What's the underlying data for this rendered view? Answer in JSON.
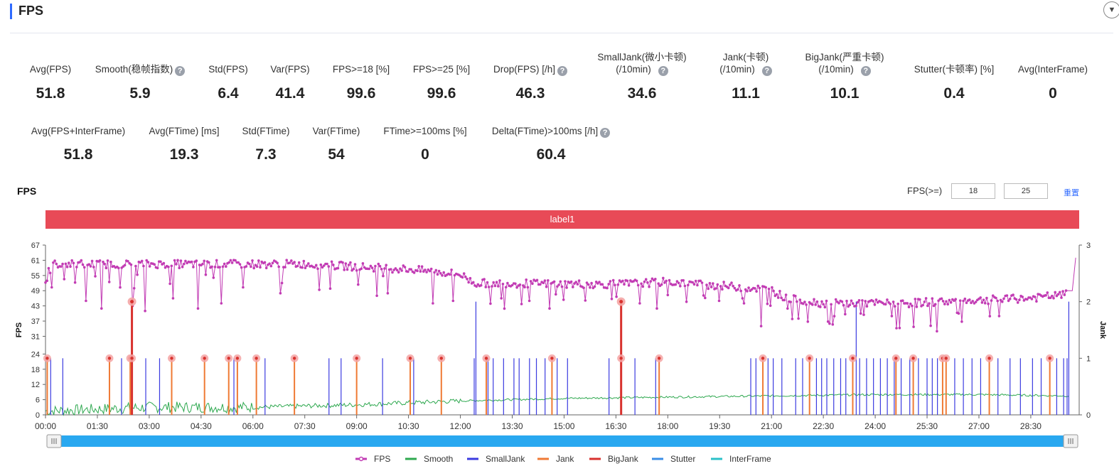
{
  "header": {
    "title": "FPS",
    "toggle_icon": "chevron-down-icon"
  },
  "metrics_row1": [
    {
      "label": "Avg(FPS)",
      "value": "51.8"
    },
    {
      "label": "Smooth(稳帧指数)",
      "value": "5.9",
      "help": true
    },
    {
      "label": "Std(FPS)",
      "value": "6.4"
    },
    {
      "label": "Var(FPS)",
      "value": "41.4"
    },
    {
      "label": "FPS>=18 [%]",
      "value": "99.6"
    },
    {
      "label": "FPS>=25 [%]",
      "value": "99.6"
    },
    {
      "label": "Drop(FPS) [/h]",
      "value": "46.3",
      "help": true
    },
    {
      "label": "SmallJank(微小卡顿)",
      "label2": "(/10min)",
      "value": "34.6",
      "help": true
    },
    {
      "label": "Jank(卡顿)",
      "label2": "(/10min)",
      "value": "11.1",
      "help": true
    },
    {
      "label": "BigJank(严重卡顿)",
      "label2": "(/10min)",
      "value": "10.1",
      "help": true
    },
    {
      "label": "Stutter(卡顿率) [%]",
      "value": "0.4"
    },
    {
      "label": "Avg(InterFrame)",
      "value": "0"
    }
  ],
  "metrics_row2": [
    {
      "label": "Avg(FPS+InterFrame)",
      "value": "51.8"
    },
    {
      "label": "Avg(FTime) [ms]",
      "value": "19.3"
    },
    {
      "label": "Std(FTime)",
      "value": "7.3"
    },
    {
      "label": "Var(FTime)",
      "value": "54"
    },
    {
      "label": "FTime>=100ms [%]",
      "value": "0"
    },
    {
      "label": "Delta(FTime)>100ms [/h]",
      "value": "60.4",
      "help": true
    }
  ],
  "chart_controls": {
    "title": "FPS",
    "threshold_label": "FPS(>=)",
    "threshold_1": "18",
    "threshold_2": "25",
    "reset_label": "重置"
  },
  "chart_data": {
    "type": "line",
    "label_band": {
      "text": "label1",
      "color": "#e84a57"
    },
    "y_left": {
      "label": "FPS",
      "ticks": [
        0,
        6,
        12,
        18,
        24,
        31,
        37,
        43,
        49,
        55,
        61,
        67
      ],
      "range": [
        0,
        67
      ]
    },
    "y_right": {
      "label": "Jank",
      "ticks": [
        0,
        1,
        2,
        3
      ],
      "range": [
        0,
        3
      ]
    },
    "x_axis": {
      "ticks": [
        "00:00",
        "01:30",
        "03:00",
        "04:30",
        "06:00",
        "07:30",
        "09:00",
        "10:30",
        "12:00",
        "13:30",
        "15:00",
        "16:30",
        "18:00",
        "19:30",
        "21:00",
        "22:30",
        "24:00",
        "25:30",
        "27:00",
        "28:30"
      ],
      "tick_minutes": [
        0,
        1.5,
        3,
        4.5,
        6,
        7.5,
        9,
        10.5,
        12,
        13.5,
        15,
        16.5,
        18,
        19.5,
        21,
        22.5,
        24,
        25.5,
        27,
        28.5
      ],
      "range_minutes": [
        0,
        29.9
      ]
    },
    "series_colors": {
      "FPS": "#c23cb4",
      "Smooth": "#2ea84f",
      "SmallJank": "#3b3be0",
      "Jank": "#ef7a34",
      "BigJank": "#d8322e",
      "Stutter": "#3a8de6",
      "InterFrame": "#2bc0c8"
    },
    "legend": [
      "FPS",
      "Smooth",
      "SmallJank",
      "Jank",
      "BigJank",
      "Stutter",
      "InterFrame"
    ],
    "legend_position": "bottom",
    "fps_trend": {
      "minutes": [
        0,
        7.5,
        10.5,
        12,
        12.4,
        16.5,
        18,
        21,
        21.4,
        22.5,
        23,
        24,
        25,
        25.5,
        28.5,
        29.5
      ],
      "values": [
        59.5,
        59.5,
        57.5,
        55.5,
        52,
        51.5,
        52.5,
        49.5,
        46,
        44,
        44,
        44,
        44,
        44.5,
        46,
        47.5
      ]
    },
    "smooth_trend": {
      "minutes": [
        0,
        3,
        6,
        9,
        12,
        15,
        18,
        21,
        24,
        27,
        29.5
      ],
      "values": [
        1.5,
        3,
        3,
        4,
        5.5,
        6.5,
        7,
        7.5,
        8,
        8,
        7.5
      ]
    },
    "fps_drops": [
      {
        "t": 1.15,
        "fps": 45
      },
      {
        "t": 1.6,
        "fps": 42
      },
      {
        "t": 2.5,
        "fps": 43
      },
      {
        "t": 2.9,
        "fps": 41
      },
      {
        "t": 3.7,
        "fps": 46
      },
      {
        "t": 4.4,
        "fps": 42
      },
      {
        "t": 5.1,
        "fps": 44
      },
      {
        "t": 5.7,
        "fps": 42
      },
      {
        "t": 6.8,
        "fps": 48
      },
      {
        "t": 7.9,
        "fps": 49
      },
      {
        "t": 9.6,
        "fps": 47
      },
      {
        "t": 11.2,
        "fps": 44
      },
      {
        "t": 11.8,
        "fps": 45
      },
      {
        "t": 13.2,
        "fps": 46
      },
      {
        "t": 14.0,
        "fps": 45
      },
      {
        "t": 14.6,
        "fps": 42
      },
      {
        "t": 17.2,
        "fps": 44
      },
      {
        "t": 17.7,
        "fps": 42
      },
      {
        "t": 19.5,
        "fps": 45
      },
      {
        "t": 20.2,
        "fps": 44
      },
      {
        "t": 20.7,
        "fps": 35
      },
      {
        "t": 21.8,
        "fps": 38
      },
      {
        "t": 22.7,
        "fps": 36
      },
      {
        "t": 23.6,
        "fps": 40
      },
      {
        "t": 24.5,
        "fps": 39
      },
      {
        "t": 25.8,
        "fps": 33
      },
      {
        "t": 26.4,
        "fps": 40
      },
      {
        "t": 27.6,
        "fps": 39
      }
    ],
    "small_jank_times": [
      0.15,
      0.5,
      2.2,
      2.9,
      3.3,
      5.45,
      6.35,
      7.2,
      8.2,
      8.55,
      9.75,
      10.65,
      12.4,
      12.8,
      12.95,
      13.25,
      13.55,
      13.7,
      14.0,
      14.2,
      14.45,
      14.8,
      15.1,
      16.3,
      17.05,
      17.65,
      20.4,
      20.55,
      20.9,
      21.05,
      21.3,
      21.7,
      21.9,
      22.1,
      22.3,
      22.45,
      22.6,
      22.8,
      23.0,
      23.15,
      23.35,
      23.55,
      23.75,
      23.95,
      24.15,
      24.35,
      24.55,
      24.75,
      25.0,
      25.25,
      25.5,
      25.65,
      25.8,
      26.05,
      26.3,
      26.55,
      26.8,
      27.05,
      27.3,
      27.55,
      27.9,
      28.2,
      28.55,
      28.8,
      29.05,
      29.25,
      29.45,
      29.55
    ],
    "small_jank_tall": [
      12.45,
      23.45,
      29.6
    ],
    "jank_events": [
      0.05,
      1.85,
      2.45,
      3.65,
      4.6,
      5.3,
      5.55,
      6.1,
      7.2,
      9.0,
      10.55,
      11.45,
      12.75,
      14.65,
      17.75,
      20.75,
      22.1,
      23.35,
      24.6,
      25.1,
      25.95,
      26.05,
      27.3,
      29.05
    ],
    "bigjank_events": [
      2.5,
      16.65
    ],
    "fps_end_spike": 62
  }
}
